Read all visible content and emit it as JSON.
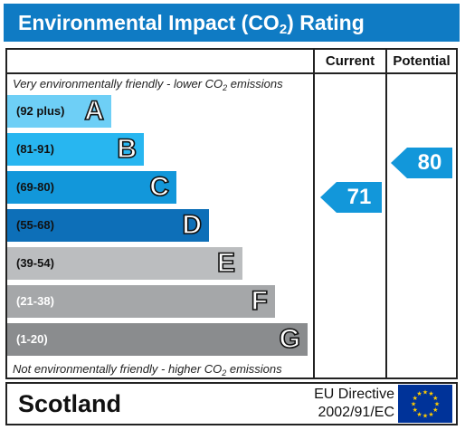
{
  "title": {
    "prefix": "Environmental Impact (CO",
    "subscript": "2",
    "suffix": ") Rating"
  },
  "columns": {
    "current": "Current",
    "potential": "Potential"
  },
  "captions": {
    "top_prefix": "Very environmentally friendly - lower CO",
    "top_subscript": "2",
    "top_suffix": " emissions",
    "bottom_prefix": "Not environmentally friendly - higher CO",
    "bottom_subscript": "2",
    "bottom_suffix": " emissions"
  },
  "bands": [
    {
      "range": "(92 plus)",
      "letter": "A",
      "color": "#6ecff6",
      "range_color": "#111111"
    },
    {
      "range": "(81-91)",
      "letter": "B",
      "color": "#28b6f0",
      "range_color": "#111111"
    },
    {
      "range": "(69-80)",
      "letter": "C",
      "color": "#1297da",
      "range_color": "#111111"
    },
    {
      "range": "(55-68)",
      "letter": "D",
      "color": "#0d6fb8",
      "range_color": "#111111"
    },
    {
      "range": "(39-54)",
      "letter": "E",
      "color": "#bbbdbf",
      "range_color": "#111111"
    },
    {
      "range": "(21-38)",
      "letter": "F",
      "color": "#a5a7a9",
      "range_color": "#ffffff"
    },
    {
      "range": "(1-20)",
      "letter": "G",
      "color": "#8a8c8e",
      "range_color": "#ffffff"
    }
  ],
  "ratings": {
    "current": {
      "value": "71",
      "band": "C",
      "color": "#1297da"
    },
    "potential": {
      "value": "80",
      "band": "C",
      "color": "#1297da"
    }
  },
  "footer": {
    "region": "Scotland",
    "directive_line1": "EU Directive",
    "directive_line2": "2002/91/EC",
    "flag_icon": "eu-flag-icon",
    "flag_color": "#003399",
    "star_color": "#ffcc00"
  }
}
